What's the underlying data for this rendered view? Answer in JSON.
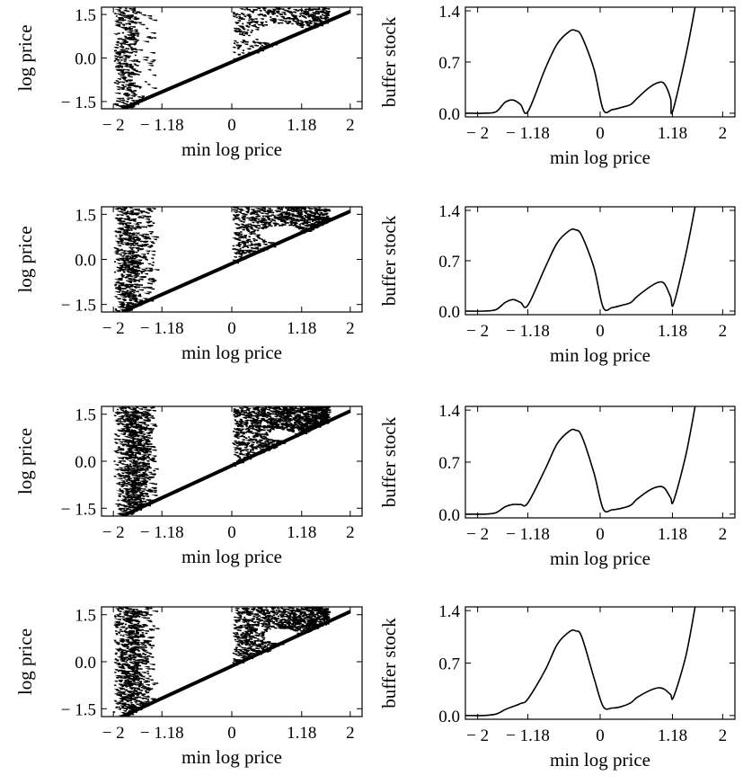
{
  "chart_data": [
    {
      "id": "bifurcation-1",
      "type": "scatter",
      "xlabel": "min log price",
      "ylabel": "log price",
      "xlim": [
        -2.2,
        2.2
      ],
      "ylim": [
        -1.75,
        1.75
      ],
      "xticks": [
        -2,
        -1.18,
        0,
        1.18,
        2
      ],
      "xtick_labels": [
        "− 2",
        "− 1.18",
        "0",
        "1.18",
        "2"
      ],
      "yticks": [
        -1.5,
        0.0,
        1.5
      ],
      "ytick_labels": [
        "− 1.5",
        "0.0",
        "1.5"
      ],
      "boundary_line": {
        "x": [
          -1.85,
          2.0
        ],
        "y": [
          -1.75,
          1.6
        ]
      },
      "density": 0.2
    },
    {
      "id": "buffer-1",
      "type": "line",
      "xlabel": "min log price",
      "ylabel": "buffer stock",
      "xlim": [
        -2.2,
        2.2
      ],
      "ylim": [
        -0.05,
        1.45
      ],
      "xticks": [
        -2,
        -1.18,
        0,
        1.18,
        2
      ],
      "xtick_labels": [
        "− 2",
        "− 1.18",
        "0",
        "1.18",
        "2"
      ],
      "yticks": [
        0.0,
        0.7,
        1.4
      ],
      "ytick_labels": [
        "0.0",
        "0.7",
        "1.4"
      ],
      "series": [
        {
          "x": [
            -2.2,
            -1.9,
            -1.7,
            -1.55,
            -1.42,
            -1.3,
            -1.18,
            -0.9,
            -0.7,
            -0.5,
            -0.4,
            -0.3,
            -0.1,
            0.05,
            0.2,
            0.35,
            0.5,
            0.6,
            0.8,
            0.95,
            1.05,
            1.15,
            1.18,
            1.4,
            1.55
          ],
          "y": [
            0.0,
            0.0,
            0.02,
            0.15,
            0.18,
            0.12,
            0.02,
            0.6,
            0.95,
            1.12,
            1.13,
            1.05,
            0.6,
            0.05,
            0.05,
            0.08,
            0.12,
            0.2,
            0.35,
            0.42,
            0.4,
            0.2,
            0.02,
            0.8,
            1.45
          ]
        }
      ]
    },
    {
      "id": "bifurcation-2",
      "type": "scatter",
      "xlabel": "min log price",
      "ylabel": "log price",
      "xlim": [
        -2.2,
        2.2
      ],
      "ylim": [
        -1.75,
        1.75
      ],
      "xticks": [
        -2,
        -1.18,
        0,
        1.18,
        2
      ],
      "xtick_labels": [
        "− 2",
        "− 1.18",
        "0",
        "1.18",
        "2"
      ],
      "yticks": [
        -1.5,
        0.0,
        1.5
      ],
      "ytick_labels": [
        "− 1.5",
        "0.0",
        "1.5"
      ],
      "boundary_line": {
        "x": [
          -1.85,
          2.0
        ],
        "y": [
          -1.75,
          1.6
        ]
      },
      "density": 0.45
    },
    {
      "id": "buffer-2",
      "type": "line",
      "xlabel": "min log price",
      "ylabel": "buffer stock",
      "xlim": [
        -2.2,
        2.2
      ],
      "ylim": [
        -0.05,
        1.45
      ],
      "xticks": [
        -2,
        -1.18,
        0,
        1.18,
        2
      ],
      "xtick_labels": [
        "− 2",
        "− 1.18",
        "0",
        "1.18",
        "2"
      ],
      "yticks": [
        0.0,
        0.7,
        1.4
      ],
      "ytick_labels": [
        "0.0",
        "0.7",
        "1.4"
      ],
      "series": [
        {
          "x": [
            -2.2,
            -1.9,
            -1.7,
            -1.55,
            -1.42,
            -1.3,
            -1.18,
            -0.9,
            -0.7,
            -0.5,
            -0.4,
            -0.3,
            -0.1,
            0.05,
            0.2,
            0.35,
            0.5,
            0.6,
            0.8,
            0.95,
            1.05,
            1.15,
            1.2,
            1.4,
            1.55
          ],
          "y": [
            0.0,
            0.0,
            0.02,
            0.12,
            0.16,
            0.12,
            0.08,
            0.6,
            0.95,
            1.12,
            1.13,
            1.05,
            0.6,
            0.05,
            0.05,
            0.08,
            0.12,
            0.2,
            0.33,
            0.4,
            0.38,
            0.2,
            0.1,
            0.8,
            1.45
          ]
        }
      ]
    },
    {
      "id": "bifurcation-3",
      "type": "scatter",
      "xlabel": "min log price",
      "ylabel": "log price",
      "xlim": [
        -2.2,
        2.2
      ],
      "ylim": [
        -1.75,
        1.75
      ],
      "xticks": [
        -2,
        -1.18,
        0,
        1.18,
        2
      ],
      "xtick_labels": [
        "− 2",
        "− 1.18",
        "0",
        "1.18",
        "2"
      ],
      "yticks": [
        -1.5,
        0.0,
        1.5
      ],
      "ytick_labels": [
        "− 1.5",
        "0.0",
        "1.5"
      ],
      "boundary_line": {
        "x": [
          -1.85,
          2.0
        ],
        "y": [
          -1.75,
          1.6
        ]
      },
      "density": 0.8
    },
    {
      "id": "buffer-3",
      "type": "line",
      "xlabel": "min log price",
      "ylabel": "buffer stock",
      "xlim": [
        -2.2,
        2.2
      ],
      "ylim": [
        -0.05,
        1.45
      ],
      "xticks": [
        -2,
        -1.18,
        0,
        1.18,
        2
      ],
      "xtick_labels": [
        "− 2",
        "− 1.18",
        "0",
        "1.18",
        "2"
      ],
      "yticks": [
        0.0,
        0.7,
        1.4
      ],
      "ytick_labels": [
        "0.0",
        "0.7",
        "1.4"
      ],
      "series": [
        {
          "x": [
            -2.2,
            -1.9,
            -1.7,
            -1.55,
            -1.42,
            -1.3,
            -1.18,
            -0.9,
            -0.7,
            -0.5,
            -0.4,
            -0.3,
            -0.1,
            0.05,
            0.2,
            0.35,
            0.5,
            0.6,
            0.8,
            0.95,
            1.05,
            1.15,
            1.2,
            1.4,
            1.55
          ],
          "y": [
            0.0,
            0.0,
            0.02,
            0.1,
            0.13,
            0.13,
            0.15,
            0.6,
            0.95,
            1.12,
            1.13,
            1.05,
            0.55,
            0.07,
            0.06,
            0.08,
            0.12,
            0.2,
            0.32,
            0.37,
            0.35,
            0.22,
            0.18,
            0.8,
            1.45
          ]
        }
      ]
    },
    {
      "id": "bifurcation-4",
      "type": "scatter",
      "xlabel": "min log price",
      "ylabel": "log price",
      "xlim": [
        -2.2,
        2.2
      ],
      "ylim": [
        -1.75,
        1.75
      ],
      "xticks": [
        -2,
        -1.18,
        0,
        1.18,
        2
      ],
      "xtick_labels": [
        "− 2",
        "− 1.18",
        "0",
        "1.18",
        "2"
      ],
      "yticks": [
        -1.5,
        0.0,
        1.5
      ],
      "ytick_labels": [
        "− 1.5",
        "0.0",
        "1.5"
      ],
      "boundary_line": {
        "x": [
          -1.85,
          2.0
        ],
        "y": [
          -1.75,
          1.6
        ]
      },
      "density": 0.65
    },
    {
      "id": "buffer-4",
      "type": "line",
      "xlabel": "min log price",
      "ylabel": "buffer stock",
      "xlim": [
        -2.2,
        2.2
      ],
      "ylim": [
        -0.05,
        1.45
      ],
      "xticks": [
        -2,
        -1.18,
        0,
        1.18,
        2
      ],
      "xtick_labels": [
        "− 2",
        "− 1.18",
        "0",
        "1.18",
        "2"
      ],
      "yticks": [
        0.0,
        0.7,
        1.4
      ],
      "ytick_labels": [
        "0.0",
        "0.7",
        "1.4"
      ],
      "series": [
        {
          "x": [
            -2.2,
            -1.9,
            -1.7,
            -1.55,
            -1.42,
            -1.3,
            -1.18,
            -0.9,
            -0.7,
            -0.5,
            -0.4,
            -0.3,
            -0.1,
            0.05,
            0.2,
            0.35,
            0.5,
            0.6,
            0.8,
            0.95,
            1.05,
            1.15,
            1.2,
            1.4,
            1.55
          ],
          "y": [
            0.0,
            0.0,
            0.02,
            0.08,
            0.12,
            0.16,
            0.22,
            0.6,
            0.95,
            1.12,
            1.13,
            1.05,
            0.5,
            0.12,
            0.1,
            0.12,
            0.17,
            0.24,
            0.33,
            0.37,
            0.35,
            0.28,
            0.25,
            0.8,
            1.45
          ]
        }
      ]
    }
  ]
}
